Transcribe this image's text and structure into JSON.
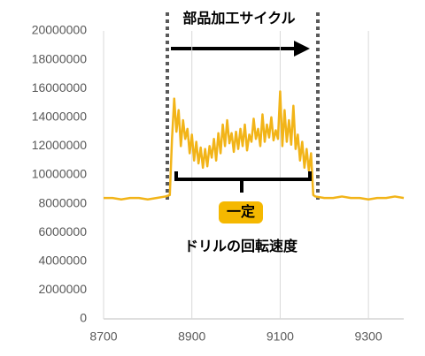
{
  "chart_data": {
    "type": "line",
    "annotations": [
      "部品加工サイクル",
      "一定"
    ],
    "x": [
      8700,
      8720,
      8740,
      8760,
      8780,
      8800,
      8820,
      8840,
      8850,
      8855,
      8860,
      8865,
      8870,
      8875,
      8880,
      8885,
      8890,
      8895,
      8900,
      8905,
      8910,
      8915,
      8920,
      8925,
      8930,
      8935,
      8940,
      8945,
      8950,
      8955,
      8960,
      8965,
      8970,
      8975,
      8980,
      8985,
      8990,
      8995,
      9000,
      9005,
      9010,
      9015,
      9020,
      9025,
      9030,
      9035,
      9040,
      9045,
      9050,
      9055,
      9060,
      9065,
      9070,
      9075,
      9080,
      9085,
      9090,
      9095,
      9100,
      9105,
      9110,
      9115,
      9120,
      9125,
      9130,
      9135,
      9140,
      9145,
      9150,
      9155,
      9160,
      9165,
      9170,
      9175,
      9180,
      9200,
      9220,
      9240,
      9260,
      9280,
      9300,
      9320,
      9340,
      9360,
      9380
    ],
    "series": [
      {
        "name": "ドリルの回転速度",
        "color": "#f2b418",
        "values": [
          8400000,
          8400000,
          8300000,
          8400000,
          8400000,
          8300000,
          8400000,
          8500000,
          8600000,
          12500000,
          15300000,
          13000000,
          14500000,
          12000000,
          13800000,
          12500000,
          13200000,
          11500000,
          12800000,
          11000000,
          12300000,
          10800000,
          11900000,
          10500000,
          11800000,
          10600000,
          12000000,
          11200000,
          12500000,
          11000000,
          12900000,
          11500000,
          13500000,
          12000000,
          13800000,
          12200000,
          12900000,
          11600000,
          13000000,
          11800000,
          13200000,
          12000000,
          13500000,
          11700000,
          12800000,
          12300000,
          13900000,
          12500000,
          13200000,
          12000000,
          14200000,
          12300000,
          13500000,
          12600000,
          14000000,
          12400000,
          13100000,
          12500000,
          15800000,
          12000000,
          14500000,
          12300000,
          13800000,
          12100000,
          14800000,
          11800000,
          12800000,
          11000000,
          12300000,
          10500000,
          11800000,
          10300000,
          11500000,
          8600000,
          8500000,
          8400000,
          8400000,
          8500000,
          8400000,
          8400000,
          8300000,
          8400000,
          8400000,
          8500000,
          8400000
        ]
      }
    ],
    "xlim": [
      8700,
      9380
    ],
    "xticks": [
      8700,
      8900,
      9100,
      9300
    ],
    "ylim": [
      0,
      20000000
    ],
    "yticks": [
      0,
      2000000,
      4000000,
      6000000,
      8000000,
      10000000,
      12000000,
      14000000,
      16000000,
      18000000,
      20000000
    ],
    "grid": "x"
  }
}
